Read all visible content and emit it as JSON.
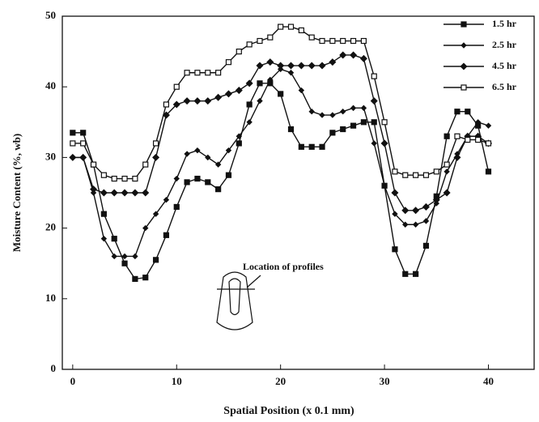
{
  "chart_data": {
    "type": "line",
    "xlabel": "Spatial Position (x 0.1 mm)",
    "ylabel": "Moisture Content (%, wb)",
    "annotation": "Location of profiles",
    "x": [
      0,
      1,
      2,
      3,
      4,
      5,
      6,
      7,
      8,
      9,
      10,
      11,
      12,
      13,
      14,
      15,
      16,
      17,
      18,
      19,
      20,
      21,
      22,
      23,
      24,
      25,
      26,
      27,
      28,
      29,
      30,
      31,
      32,
      33,
      34,
      35,
      36,
      37,
      38,
      39,
      40
    ],
    "xlim": [
      -1,
      44.4
    ],
    "ylim": [
      0,
      50
    ],
    "xticks": [
      0,
      10,
      20,
      30,
      40
    ],
    "yticks": [
      0,
      10,
      20,
      30,
      40,
      50
    ],
    "legend": "upper right",
    "series": [
      {
        "name": "1.5 hr",
        "color": "#111111",
        "marker": "square-filled",
        "values": [
          33.5,
          33.5,
          29,
          22,
          18.5,
          15,
          12.8,
          13,
          15.5,
          19,
          23,
          26.5,
          27,
          26.5,
          25.5,
          27.5,
          32,
          37.5,
          40.5,
          40.5,
          39,
          34,
          31.5,
          31.5,
          31.5,
          33.5,
          34,
          34.5,
          35,
          35,
          26,
          17,
          13.5,
          13.5,
          17.5,
          24.5,
          33,
          36.5,
          36.5,
          34.5,
          28
        ]
      },
      {
        "name": "2.5 hr",
        "color": "#111111",
        "marker": "diamond-small",
        "values": [
          30,
          30,
          25,
          18.5,
          16,
          16,
          16,
          20,
          22,
          24,
          27,
          30.5,
          31,
          30,
          29,
          31,
          33,
          35,
          38,
          41,
          42.5,
          42,
          39.5,
          36.5,
          36,
          36,
          36.5,
          37,
          37,
          32,
          26,
          22,
          20.5,
          20.5,
          21,
          23.5,
          28,
          30.5,
          33,
          35,
          34.5
        ]
      },
      {
        "name": "4.5 hr",
        "color": "#111111",
        "marker": "diamond",
        "values": [
          30,
          30,
          25.5,
          25,
          25,
          25,
          25,
          25,
          30,
          36,
          37.5,
          38,
          38,
          38,
          38.5,
          39,
          39.5,
          40.5,
          43,
          43.5,
          43,
          43,
          43,
          43,
          43,
          43.5,
          44.5,
          44.5,
          44,
          38,
          32,
          25,
          22.5,
          22.5,
          23,
          24,
          25,
          30,
          33,
          33,
          32
        ]
      },
      {
        "name": "6.5 hr",
        "color": "#111111",
        "marker": "square-open",
        "values": [
          32,
          32,
          29,
          27.5,
          27,
          27,
          27,
          29,
          32,
          37.5,
          40,
          42,
          42,
          42,
          42,
          43.5,
          45,
          46,
          46.5,
          47,
          48.5,
          48.5,
          48,
          47,
          46.5,
          46.5,
          46.5,
          46.5,
          46.5,
          41.5,
          35,
          28,
          27.5,
          27.5,
          27.5,
          28,
          29,
          33,
          32.5,
          32.5,
          32
        ]
      }
    ]
  }
}
